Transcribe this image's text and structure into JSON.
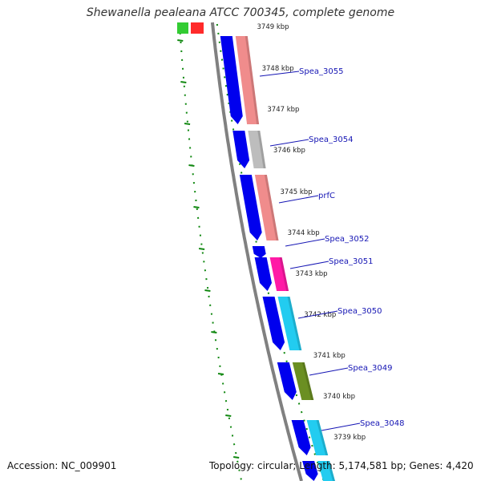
{
  "title": "Shewanella pealeana ATCC 700345, complete genome",
  "accession_label": "Accession: NC_009901",
  "topology_label": "Topology: circular; Length: 5,174,581 bp; Genes: 4,420",
  "kbp_ticks": [
    "3749 kbp",
    "3748 kbp",
    "3747 kbp",
    "3746 kbp",
    "3745 kbp",
    "3744 kbp",
    "3743 kbp",
    "3742 kbp",
    "3741 kbp",
    "3740 kbp",
    "3739 kbp"
  ],
  "gene_labels": [
    "Spea_3055",
    "Spea_3054",
    "prfC",
    "Spea_3052",
    "Spea_3051",
    "Spea_3050",
    "Spea_3049",
    "Spea_3048"
  ],
  "colors": {
    "backbone": "#808080",
    "forward_gene": "#0000ee",
    "gc_track": "#118811",
    "label_line": "#1515b4",
    "cog_salmon": "#f08c8c",
    "cog_gray": "#bdbdbd",
    "cog_magenta": "#ff1aa6",
    "cog_cyan": "#22ccf0",
    "cog_olive": "#6b8f22",
    "cog_green": "#33cc33",
    "cog_red": "#ff2a2a"
  }
}
